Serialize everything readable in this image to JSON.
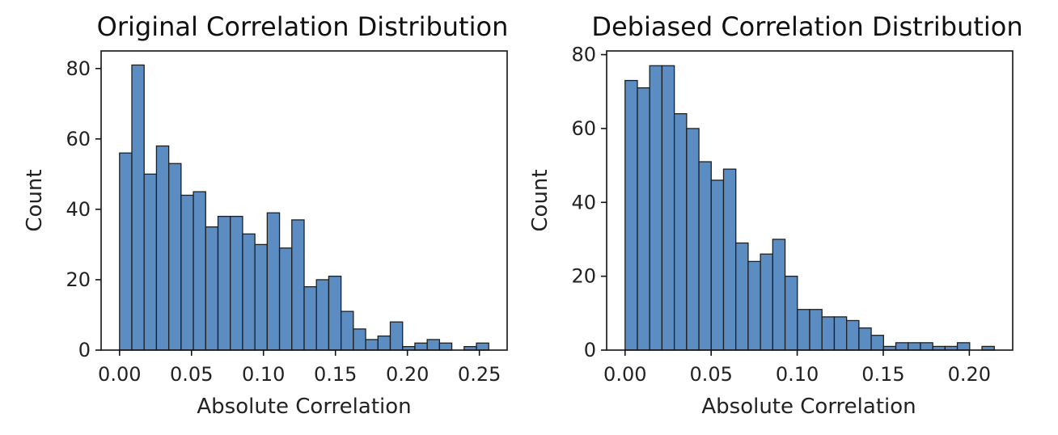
{
  "chart_data": [
    {
      "type": "bar",
      "title": "Original Correlation Distribution",
      "xlabel": "Absolute Correlation",
      "ylabel": "Count",
      "bin_start": 0.0,
      "bin_width": 0.00855,
      "values": [
        56,
        81,
        50,
        58,
        53,
        44,
        45,
        35,
        38,
        38,
        33,
        30,
        39,
        29,
        37,
        18,
        20,
        21,
        11,
        6,
        3,
        4,
        8,
        1,
        2,
        3,
        2,
        0,
        1,
        2
      ],
      "xlim": [
        -0.0128,
        0.2693
      ],
      "ylim": [
        0,
        85
      ],
      "xticks": [
        0.0,
        0.05,
        0.1,
        0.15,
        0.2,
        0.25
      ],
      "xtick_labels": [
        "0.00",
        "0.05",
        "0.10",
        "0.15",
        "0.20",
        "0.25"
      ],
      "yticks": [
        0,
        20,
        40,
        60,
        80
      ],
      "ytick_labels": [
        "0",
        "20",
        "40",
        "60",
        "80"
      ],
      "bar_color": "#5b8cc2",
      "edge_color": "#1f1f1f",
      "grid": false
    },
    {
      "type": "bar",
      "title": "Debiased Correlation Distribution",
      "xlabel": "Absolute Correlation",
      "ylabel": "Count",
      "bin_start": 0.0,
      "bin_width": 0.00715,
      "values": [
        73,
        71,
        77,
        77,
        64,
        60,
        51,
        46,
        49,
        29,
        24,
        26,
        30,
        20,
        11,
        11,
        9,
        9,
        8,
        6,
        4,
        1,
        2,
        2,
        2,
        1,
        1,
        2,
        0,
        1
      ],
      "xlim": [
        -0.0107,
        0.2252
      ],
      "ylim": [
        0,
        81
      ],
      "xticks": [
        0.0,
        0.05,
        0.1,
        0.15,
        0.2
      ],
      "xtick_labels": [
        "0.00",
        "0.05",
        "0.10",
        "0.15",
        "0.20"
      ],
      "yticks": [
        0,
        20,
        40,
        60,
        80
      ],
      "ytick_labels": [
        "0",
        "20",
        "40",
        "60",
        "80"
      ],
      "bar_color": "#5b8cc2",
      "edge_color": "#1f1f1f",
      "grid": false
    }
  ]
}
